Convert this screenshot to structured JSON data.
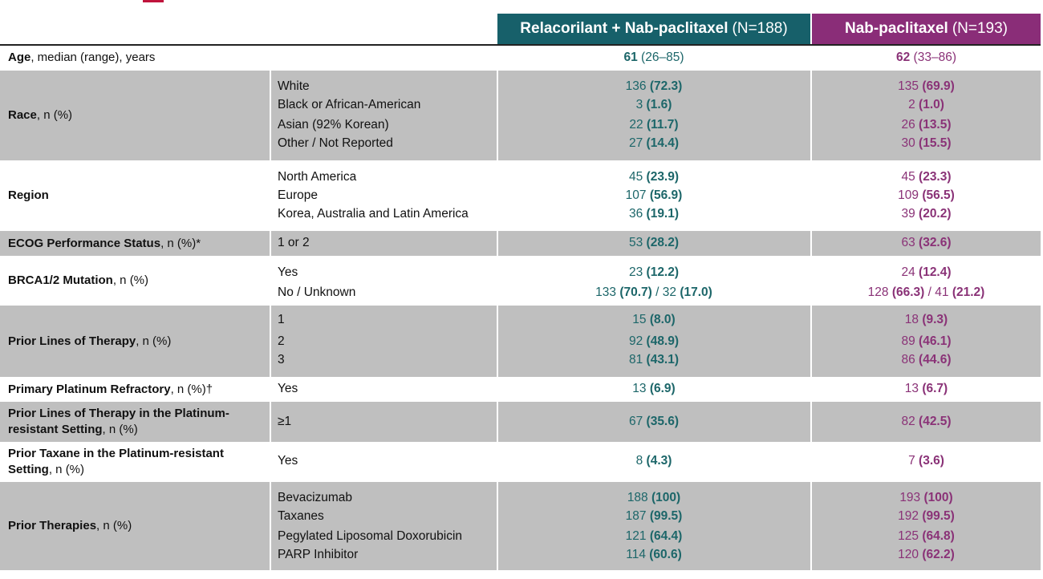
{
  "colors": {
    "arm1": "#17606a",
    "arm2": "#8a2d78",
    "arm1_text": "#1c6669",
    "arm2_text": "#8a3277",
    "shade": "#bfbfbf",
    "topmark": "#c0143c"
  },
  "header": {
    "arm1_name": "Relacorilant + Nab-paclitaxel",
    "arm1_n": "(N=188)",
    "arm2_name": "Nab-paclitaxel",
    "arm2_n": "(N=193)"
  },
  "rows": [
    {
      "label_bold": "Age",
      "label_rest": ", median (range), years",
      "sub": [
        ""
      ],
      "arm1": [
        {
          "a": "61",
          "b": " (26–85)"
        }
      ],
      "arm2": [
        {
          "a": "62",
          "b": " (33–86)"
        }
      ]
    },
    {
      "label_bold": "Race",
      "label_rest": ", n (%)",
      "sub": [
        "White",
        "Black or African-American",
        "Asian (92% Korean)",
        "Other / Not Reported"
      ],
      "arm1": [
        {
          "a": "136",
          "b": "(72.3)"
        },
        {
          "a": "3",
          "b": "(1.6)"
        },
        {
          "a": "22",
          "b": "(11.7)"
        },
        {
          "a": "27",
          "b": "(14.4)"
        }
      ],
      "arm2": [
        {
          "a": "135",
          "b": "(69.9)"
        },
        {
          "a": "2",
          "b": "(1.0)"
        },
        {
          "a": "26",
          "b": "(13.5)"
        },
        {
          "a": "30",
          "b": "(15.5)"
        }
      ]
    },
    {
      "label_bold": "Region",
      "label_rest": "",
      "sub": [
        "North America",
        "Europe",
        "Korea, Australia and Latin America"
      ],
      "arm1": [
        {
          "a": "45",
          "b": "(23.9)"
        },
        {
          "a": "107",
          "b": "(56.9)"
        },
        {
          "a": "36",
          "b": "(19.1)"
        }
      ],
      "arm2": [
        {
          "a": "45",
          "b": "(23.3)"
        },
        {
          "a": "109",
          "b": "(56.5)"
        },
        {
          "a": "39",
          "b": "(20.2)"
        }
      ]
    },
    {
      "label_bold": "ECOG Performance Status",
      "label_rest": ", n (%)*",
      "sub": [
        "1 or 2"
      ],
      "arm1": [
        {
          "a": "53",
          "b": "(28.2)"
        }
      ],
      "arm2": [
        {
          "a": "63",
          "b": "(32.6)"
        }
      ]
    },
    {
      "label_bold": "BRCA1/2 Mutation",
      "label_rest": ", n (%)",
      "sub": [
        "Yes",
        "No / Unknown"
      ],
      "arm1": [
        {
          "a": "23",
          "b": "(12.2)"
        },
        {
          "a": "133",
          "b": "(70.7)",
          "c": " / 32 ",
          "d": "(17.0)"
        }
      ],
      "arm2": [
        {
          "a": "24",
          "b": "(12.4)"
        },
        {
          "a": "128",
          "b": "(66.3)",
          "c": " / 41 ",
          "d": "(21.2)"
        }
      ]
    },
    {
      "label_bold": "Prior Lines of Therapy",
      "label_rest": ", n (%)",
      "sub": [
        "1",
        "2",
        "3"
      ],
      "arm1": [
        {
          "a": "15",
          "b": "(8.0)"
        },
        {
          "a": "92",
          "b": "(48.9)"
        },
        {
          "a": "81",
          "b": "(43.1)"
        }
      ],
      "arm2": [
        {
          "a": "18",
          "b": "(9.3)"
        },
        {
          "a": "89",
          "b": "(46.1)"
        },
        {
          "a": "86",
          "b": "(44.6)"
        }
      ]
    },
    {
      "label_bold": "Primary Platinum Refractory",
      "label_rest": ", n (%)†",
      "sub": [
        "Yes"
      ],
      "arm1": [
        {
          "a": "13",
          "b": "(6.9)"
        }
      ],
      "arm2": [
        {
          "a": "13",
          "b": "(6.7)"
        }
      ]
    },
    {
      "label_bold": "Prior Lines of Therapy in the Platinum-resistant Setting",
      "label_rest": ", n (%)",
      "sub": [
        "≥1"
      ],
      "arm1": [
        {
          "a": "67",
          "b": "(35.6)"
        }
      ],
      "arm2": [
        {
          "a": "82",
          "b": "(42.5)"
        }
      ]
    },
    {
      "label_bold": "Prior Taxane in the Platinum-resistant Setting",
      "label_rest": ", n (%)",
      "sub": [
        "Yes"
      ],
      "arm1": [
        {
          "a": "8",
          "b": "(4.3)"
        }
      ],
      "arm2": [
        {
          "a": "7",
          "b": "(3.6)"
        }
      ]
    },
    {
      "label_bold": "Prior Therapies",
      "label_rest": ", n (%)",
      "sub": [
        "Bevacizumab",
        "Taxanes",
        "Pegylated Liposomal Doxorubicin",
        "PARP Inhibitor"
      ],
      "arm1": [
        {
          "a": "188",
          "b": "(100)"
        },
        {
          "a": "187",
          "b": "(99.5)"
        },
        {
          "a": "121",
          "b": "(64.4)"
        },
        {
          "a": "114",
          "b": "(60.6)"
        }
      ],
      "arm2": [
        {
          "a": "193",
          "b": "(100)"
        },
        {
          "a": "192",
          "b": "(99.5)"
        },
        {
          "a": "125",
          "b": "(64.8)"
        },
        {
          "a": "120",
          "b": "(62.2)"
        }
      ]
    }
  ]
}
